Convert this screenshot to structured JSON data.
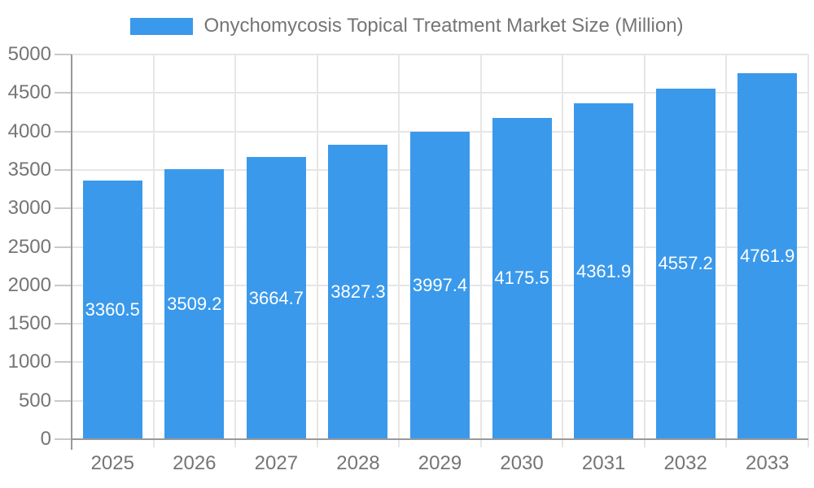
{
  "chart_data": {
    "type": "bar",
    "title": "Onychomycosis Topical Treatment Market Size (Million)",
    "categories": [
      "2025",
      "2026",
      "2027",
      "2028",
      "2029",
      "2030",
      "2031",
      "2032",
      "2033"
    ],
    "values": [
      3360.5,
      3509.2,
      3664.7,
      3827.3,
      3997.4,
      4175.5,
      4361.9,
      4557.2,
      4761.9
    ],
    "value_labels": [
      "3360.5",
      "3509.2",
      "3664.7",
      "3827.3",
      "3997.4",
      "4175.5",
      "4361.9",
      "4557.2",
      "4761.9"
    ],
    "xlabel": "",
    "ylabel": "",
    "ylim": [
      0,
      5000
    ],
    "yticks": [
      0,
      500,
      1000,
      1500,
      2000,
      2500,
      3000,
      3500,
      4000,
      4500,
      5000
    ],
    "grid": true,
    "legend_position": "top-center",
    "colors": {
      "bar": "#3A99EB",
      "bar_label_text": "#FFFFFF",
      "axis_text": "#757575",
      "gridline": "#E6E6E6",
      "axis_line": "#999999",
      "tick": "#C9C9C9",
      "background": "#FFFFFF"
    }
  }
}
